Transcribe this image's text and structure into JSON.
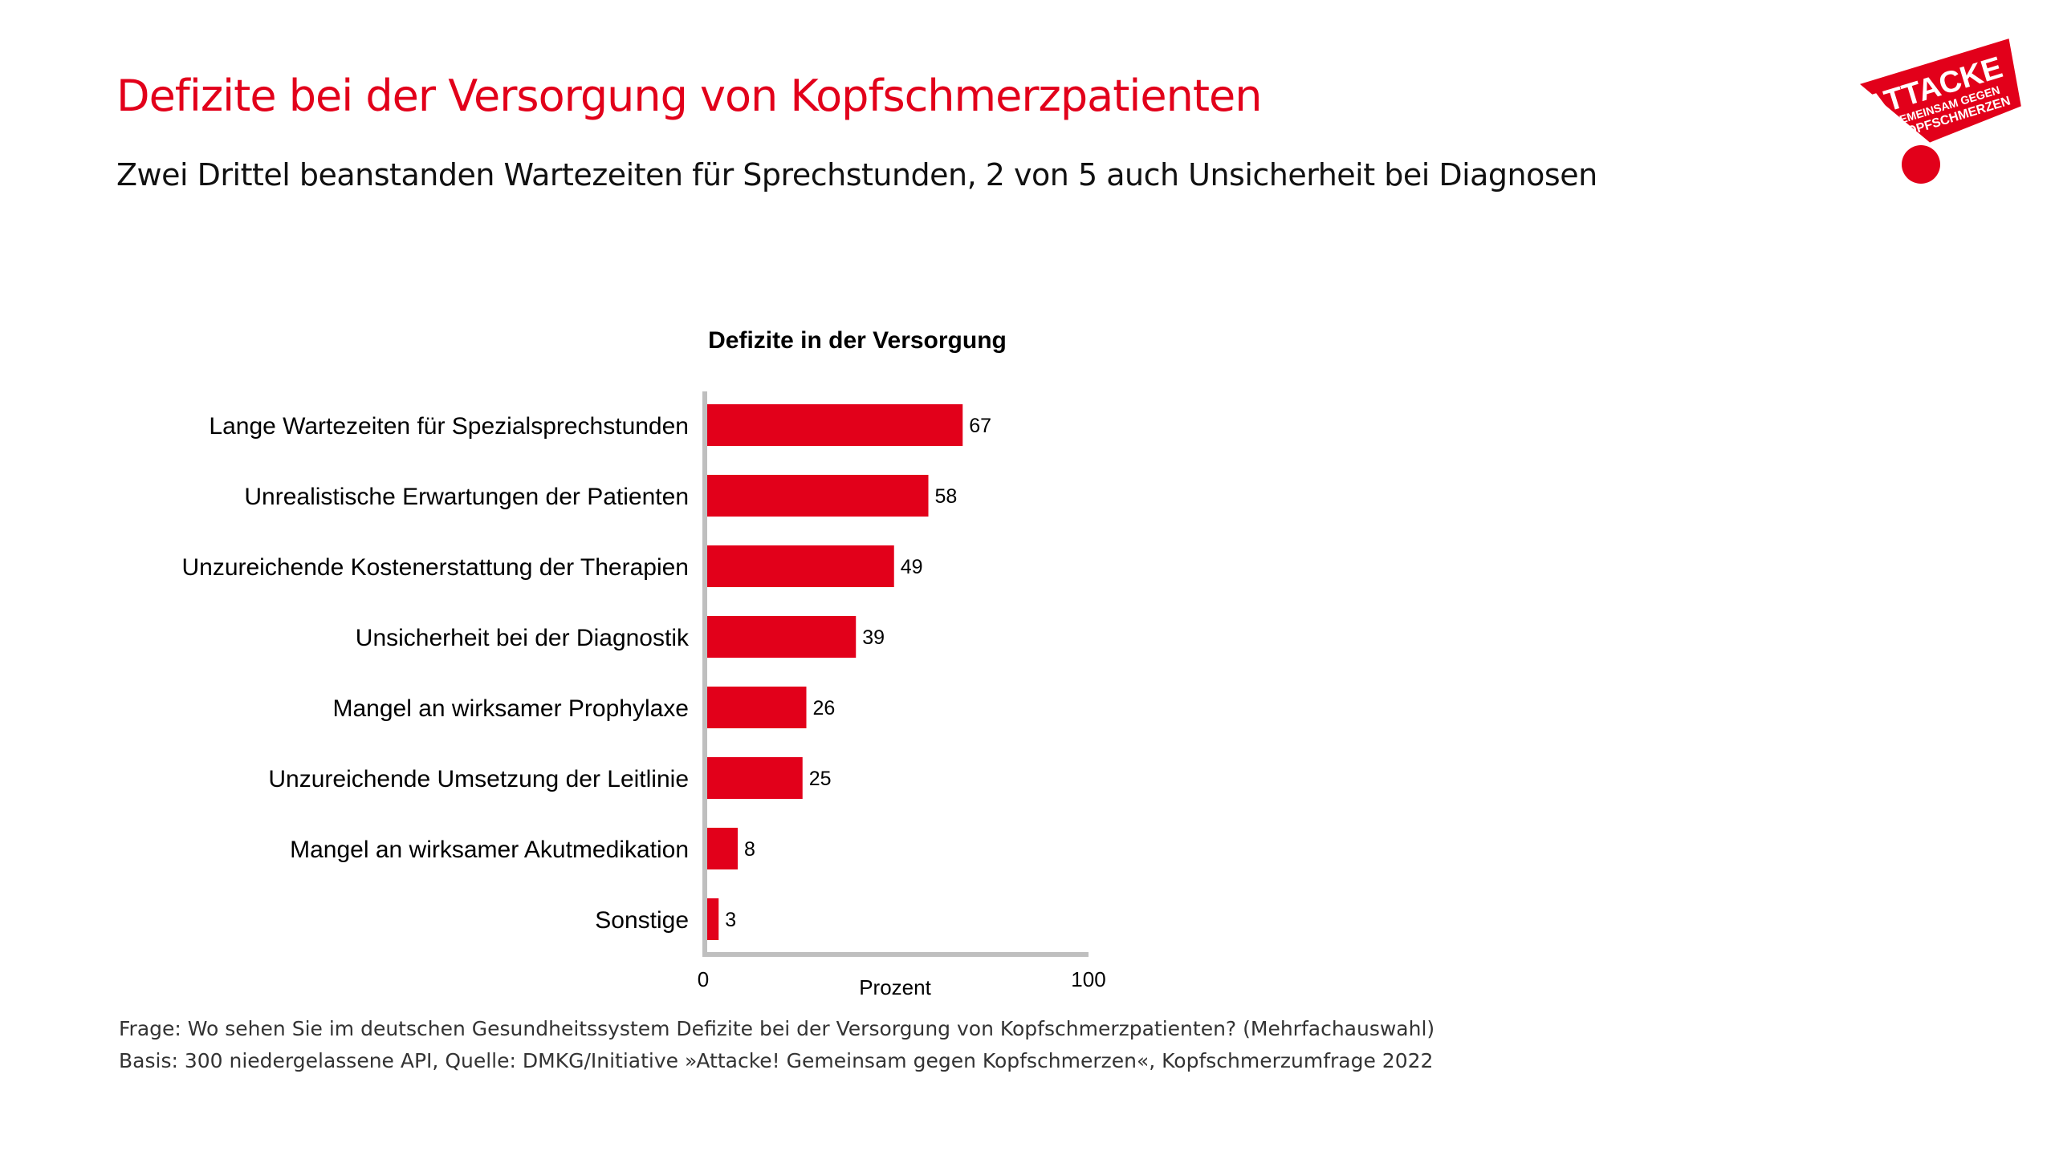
{
  "slide": {
    "title": "Defizite bei der Versorgung von Kopfschmerzpatienten",
    "subtitle": "Zwei Drittel beanstanden Wartezeiten für Sprechstunden, 2 von 5 auch Unsicherheit bei Diagnosen",
    "footnote_question": "Frage: Wo sehen Sie im deutschen Gesundheitssystem Defizite bei der Versorgung von Kopfschmerzpatienten? (Mehrfachauswahl)",
    "footnote_basis": "Basis: 300 niedergelassene API, Quelle: DMKG/Initiative »Attacke! Gemeinsam gegen Kopfschmerzen«, Kopfschmerzumfrage 2022"
  },
  "logo": {
    "line1": "ATTACKE",
    "line2": "GEMEINSAM GEGEN",
    "line3": "KOPFSCHMERZEN"
  },
  "colors": {
    "accent": "#e2001a",
    "axis": "#bfbfbf",
    "text": "#000000"
  },
  "chart_data": {
    "type": "bar",
    "orientation": "horizontal",
    "title": "Defizite in der Versorgung",
    "xlabel": "Prozent",
    "ylabel": "",
    "xlim": [
      0,
      100
    ],
    "x_tick_labels": [
      "0",
      "100"
    ],
    "categories": [
      "Lange Wartezeiten für Spezialsprechstunden",
      "Unrealistische Erwartungen der Patienten",
      "Unzureichende Kostenerstattung der Therapien",
      "Unsicherheit bei der Diagnostik",
      "Mangel an wirksamer Prophylaxe",
      "Unzureichende Umsetzung der Leitlinie",
      "Mangel an wirksamer Akutmedikation",
      "Sonstige"
    ],
    "values": [
      67,
      58,
      49,
      39,
      26,
      25,
      8,
      3
    ],
    "data_labels": true,
    "grid": false,
    "legend": "none",
    "bar_color": "#e2001a"
  }
}
